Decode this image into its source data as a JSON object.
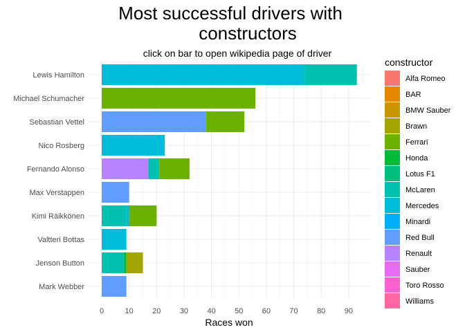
{
  "chart_data": {
    "type": "bar",
    "orientation": "horizontal",
    "stacked": true,
    "title_lines": [
      "Most successful drivers with",
      "constructors"
    ],
    "subtitle": "click on bar to open wikipedia page of driver",
    "xlabel": "Races won",
    "ylabel": "",
    "xlim": [
      0,
      95
    ],
    "xticks": [
      0,
      10,
      20,
      30,
      40,
      50,
      60,
      70,
      80,
      90
    ],
    "grid": true,
    "legend_title": "constructor",
    "legend_position": "right",
    "constructors": [
      {
        "name": "Alfa Romeo",
        "color": "#F8766D"
      },
      {
        "name": "BAR",
        "color": "#E58700"
      },
      {
        "name": "BMW Sauber",
        "color": "#C99800"
      },
      {
        "name": "Brawn",
        "color": "#A3A500"
      },
      {
        "name": "Ferrari",
        "color": "#6BB100"
      },
      {
        "name": "Honda",
        "color": "#00BA38"
      },
      {
        "name": "Lotus F1",
        "color": "#00BF7D"
      },
      {
        "name": "McLaren",
        "color": "#00C0AF"
      },
      {
        "name": "Mercedes",
        "color": "#00BCD8"
      },
      {
        "name": "Minardi",
        "color": "#00B0F6"
      },
      {
        "name": "Red Bull",
        "color": "#619CFF"
      },
      {
        "name": "Renault",
        "color": "#B983FF"
      },
      {
        "name": "Sauber",
        "color": "#E76BF3"
      },
      {
        "name": "Toro Rosso",
        "color": "#FD61D1"
      },
      {
        "name": "Williams",
        "color": "#FF67A4"
      }
    ],
    "drivers": [
      {
        "name": "Lewis Hamilton",
        "segments": [
          {
            "constructor": "Mercedes",
            "value": 74
          },
          {
            "constructor": "McLaren",
            "value": 19
          }
        ]
      },
      {
        "name": "Michael Schumacher",
        "segments": [
          {
            "constructor": "Ferrari",
            "value": 56
          }
        ]
      },
      {
        "name": "Sebastian Vettel",
        "segments": [
          {
            "constructor": "Red Bull",
            "value": 38
          },
          {
            "constructor": "Ferrari",
            "value": 14
          }
        ]
      },
      {
        "name": "Nico Rosberg",
        "segments": [
          {
            "constructor": "Mercedes",
            "value": 23
          }
        ]
      },
      {
        "name": "Fernando Alonso",
        "segments": [
          {
            "constructor": "Renault",
            "value": 17
          },
          {
            "constructor": "McLaren",
            "value": 4
          },
          {
            "constructor": "Ferrari",
            "value": 11
          }
        ]
      },
      {
        "name": "Max Verstappen",
        "segments": [
          {
            "constructor": "Red Bull",
            "value": 10
          }
        ]
      },
      {
        "name": "Kimi Räikkönen",
        "segments": [
          {
            "constructor": "McLaren",
            "value": 9
          },
          {
            "constructor": "Mercedes",
            "value": 1
          },
          {
            "constructor": "Ferrari",
            "value": 10
          }
        ]
      },
      {
        "name": "Valtteri Bottas",
        "segments": [
          {
            "constructor": "Mercedes",
            "value": 9
          }
        ]
      },
      {
        "name": "Jenson Button",
        "segments": [
          {
            "constructor": "McLaren",
            "value": 8
          },
          {
            "constructor": "Honda",
            "value": 1
          },
          {
            "constructor": "Brawn",
            "value": 6
          }
        ]
      },
      {
        "name": "Mark Webber",
        "segments": [
          {
            "constructor": "Red Bull",
            "value": 9
          }
        ]
      }
    ]
  }
}
